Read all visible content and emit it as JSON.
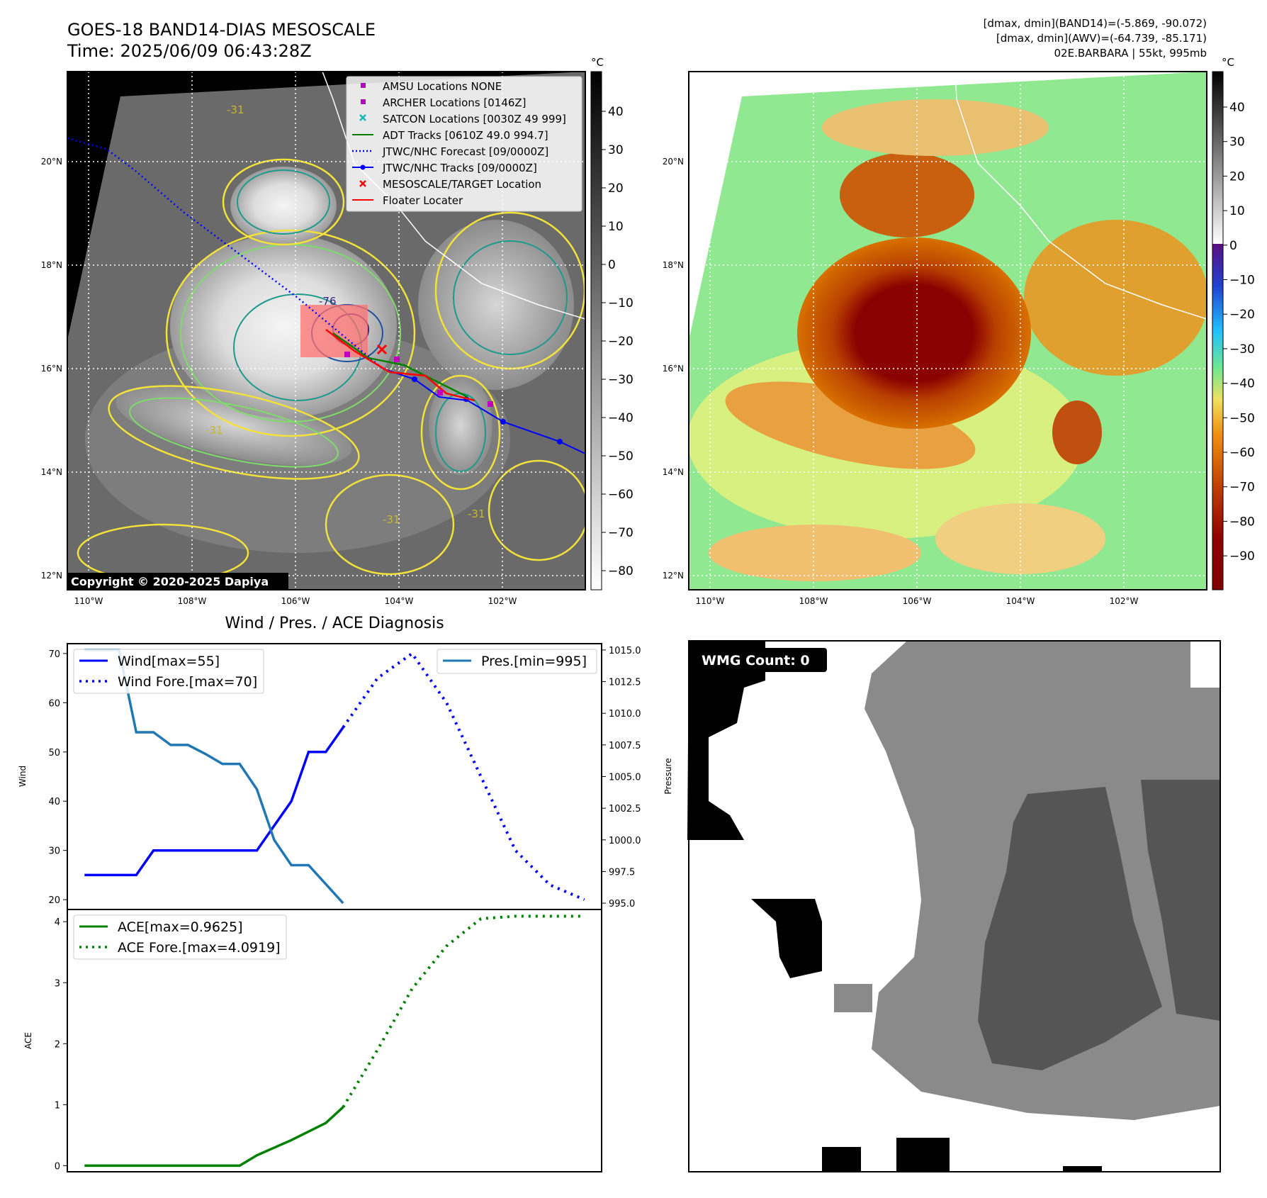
{
  "header": {
    "title": "GOES-18 BAND14-DIAS MESOSCALE",
    "time": "Time: 2025/06/09 06:43:28Z",
    "info_line1": "[dmax, dmin](BAND14)=(-5.869, -90.072)",
    "info_line2": "[dmax, dmin](AWV)=(-64.739, -85.171)",
    "info_line3": "02E.BARBARA | 55kt, 995mb"
  },
  "map": {
    "lat_labels": [
      "20°N",
      "18°N",
      "16°N",
      "14°N",
      "12°N"
    ],
    "lon_labels": [
      "110°W",
      "108°W",
      "106°W",
      "104°W",
      "102°W"
    ],
    "copyright": "Copyright © 2020-2025 Dapiya",
    "contour_labels": [
      "-31",
      "-31",
      "-31",
      "-31",
      "-76"
    ],
    "legend": [
      {
        "label": "AMSU Locations NONE",
        "color": "#c000c0",
        "kind": "square"
      },
      {
        "label": "ARCHER Locations [0146Z]",
        "color": "#c000c0",
        "kind": "square"
      },
      {
        "label": "SATCON Locations [0030Z 49 999]",
        "color": "#17b5b5",
        "kind": "x"
      },
      {
        "label": "ADT Tracks [0610Z 49.0 994.7]",
        "color": "#008000",
        "kind": "line"
      },
      {
        "label": "JTWC/NHC Forecast [09/0000Z]",
        "color": "#0000ff",
        "kind": "dotted"
      },
      {
        "label": "JTWC/NHC Tracks [09/0000Z]",
        "color": "#0000ff",
        "kind": "dotline"
      },
      {
        "label": "MESOSCALE/TARGET Location",
        "color": "#ff0000",
        "kind": "x"
      },
      {
        "label": "Floater Locater",
        "color": "#ff0000",
        "kind": "line"
      }
    ]
  },
  "colorbar_gray": {
    "unit": "°C",
    "ticks": [
      "40",
      "30",
      "20",
      "10",
      "0",
      "−10",
      "−20",
      "−30",
      "−40",
      "−50",
      "−60",
      "−70",
      "−80"
    ]
  },
  "colorbar_color": {
    "unit": "°C",
    "ticks": [
      "40",
      "30",
      "20",
      "10",
      "0",
      "−10",
      "−20",
      "−30",
      "−40",
      "−50",
      "−60",
      "−70",
      "−80",
      "−90"
    ]
  },
  "diagnosis": {
    "title": "Wind / Pres. / ACE Diagnosis",
    "wind_ylabel": "Wind",
    "pres_ylabel": "Pressure",
    "ace_ylabel": "ACE",
    "legend_wind": "Wind[max=55]",
    "legend_wind_fore": "Wind Fore.[max=70]",
    "legend_pres": "Pres.[min=995]",
    "legend_ace": "ACE[max=0.9625]",
    "legend_ace_fore": "ACE Fore.[max=4.0919]"
  },
  "wmg": {
    "label": "WMG Count: 0"
  },
  "chart_data": [
    {
      "type": "line",
      "name_ref": "wind-pressure",
      "wind_yticks": [
        20,
        30,
        40,
        50,
        60,
        70
      ],
      "pres_yticks": [
        "995.0",
        "997.5",
        "1000.0",
        "1002.5",
        "1005.0",
        "1007.5",
        "1010.0",
        "1012.5",
        "1015.0"
      ],
      "wind_ylim": [
        18,
        72
      ],
      "pres_ylim": [
        994.5,
        1015.5
      ],
      "xlim": [
        -1,
        30
      ],
      "series": [
        {
          "name": "Wind[max=55]",
          "color": "#0000ff",
          "style": "solid",
          "x": [
            0,
            3,
            4,
            5,
            6,
            7,
            8,
            9,
            10,
            11,
            12,
            13,
            14,
            15
          ],
          "y": [
            25,
            25,
            30,
            30,
            30,
            30,
            30,
            30,
            30,
            35,
            40,
            50,
            50,
            55
          ]
        },
        {
          "name": "Wind Fore.[max=70]",
          "color": "#0000ff",
          "style": "dotted",
          "x": [
            15,
            17,
            19,
            21,
            23,
            25,
            27,
            29
          ],
          "y": [
            55,
            65,
            70,
            60,
            45,
            30,
            23,
            20
          ]
        },
        {
          "name": "Pres.[min=995]",
          "color": "#1f77b4",
          "style": "solid",
          "axis": "right",
          "x": [
            0,
            2,
            3,
            4,
            5,
            6,
            7,
            8,
            9,
            10,
            11,
            12,
            13,
            15
          ],
          "y": [
            1015,
            1015,
            1008.5,
            1008.5,
            1007.5,
            1007.5,
            1006.8,
            1006,
            1006,
            1004,
            1000,
            998,
            998,
            995
          ]
        }
      ]
    },
    {
      "type": "line",
      "name_ref": "ace",
      "ace_yticks": [
        0,
        1,
        2,
        3,
        4
      ],
      "ace_ylim": [
        -0.1,
        4.2
      ],
      "xlim": [
        -1,
        30
      ],
      "series": [
        {
          "name": "ACE[max=0.9625]",
          "color": "#008000",
          "style": "solid",
          "x": [
            0,
            3,
            6,
            9,
            10,
            12,
            14,
            15
          ],
          "y": [
            0,
            0,
            0,
            0,
            0.17,
            0.42,
            0.7,
            0.96
          ]
        },
        {
          "name": "ACE Fore.[max=4.0919]",
          "color": "#008000",
          "style": "dotted",
          "x": [
            15,
            17,
            19,
            21,
            23,
            25,
            27,
            29
          ],
          "y": [
            0.96,
            1.9,
            2.9,
            3.6,
            4.05,
            4.09,
            4.09,
            4.09
          ]
        }
      ]
    }
  ]
}
